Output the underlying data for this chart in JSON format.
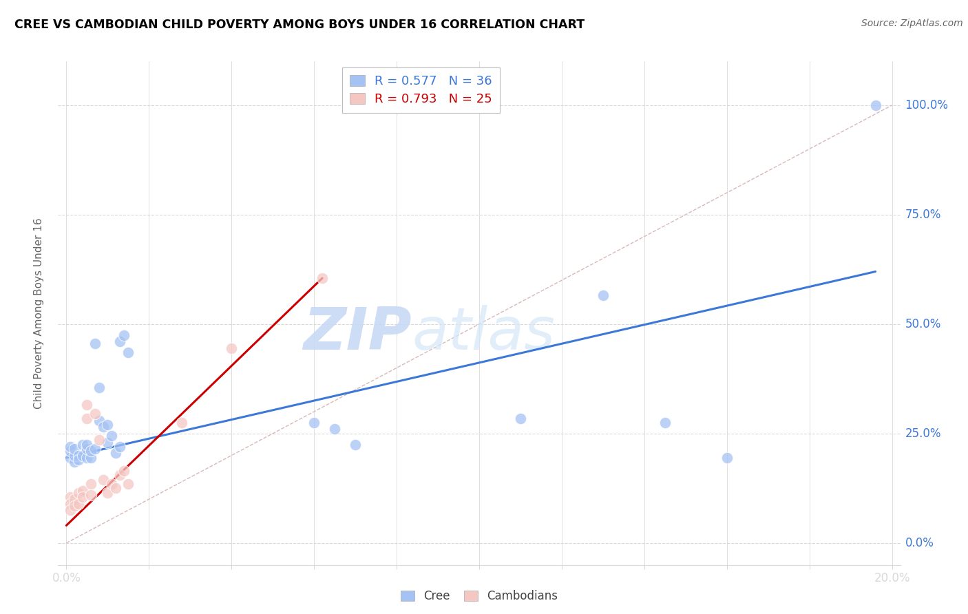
{
  "title": "CREE VS CAMBODIAN CHILD POVERTY AMONG BOYS UNDER 16 CORRELATION CHART",
  "source": "Source: ZipAtlas.com",
  "ylabel": "Child Poverty Among Boys Under 16",
  "watermark_zip": "ZIP",
  "watermark_atlas": "atlas",
  "legend_r1": "R = 0.577",
  "legend_n1": "N = 36",
  "legend_r2": "R = 0.793",
  "legend_n2": "N = 25",
  "cree_color": "#a4c2f4",
  "cambodian_color": "#f4c7c3",
  "cree_line_color": "#3c78d8",
  "cambodian_line_color": "#cc0000",
  "ref_line_color": "#d9b8b8",
  "background_color": "#ffffff",
  "grid_color": "#d9d9d9",
  "axis_color": "#3c78d8",
  "title_color": "#000000",
  "source_color": "#666666",
  "ylabel_color": "#666666",
  "cree_scatter_x": [
    0.001,
    0.001,
    0.001,
    0.002,
    0.002,
    0.002,
    0.003,
    0.003,
    0.004,
    0.004,
    0.005,
    0.005,
    0.005,
    0.006,
    0.006,
    0.007,
    0.007,
    0.008,
    0.008,
    0.009,
    0.01,
    0.01,
    0.011,
    0.012,
    0.013,
    0.013,
    0.014,
    0.015,
    0.06,
    0.065,
    0.07,
    0.11,
    0.13,
    0.145,
    0.16,
    0.196
  ],
  "cree_scatter_y": [
    0.195,
    0.21,
    0.22,
    0.185,
    0.2,
    0.215,
    0.2,
    0.19,
    0.2,
    0.225,
    0.195,
    0.215,
    0.225,
    0.195,
    0.21,
    0.215,
    0.455,
    0.355,
    0.28,
    0.265,
    0.27,
    0.23,
    0.245,
    0.205,
    0.22,
    0.46,
    0.475,
    0.435,
    0.275,
    0.26,
    0.225,
    0.285,
    0.565,
    0.275,
    0.195,
    1.0
  ],
  "cambodian_scatter_x": [
    0.001,
    0.001,
    0.001,
    0.002,
    0.002,
    0.003,
    0.003,
    0.004,
    0.004,
    0.005,
    0.005,
    0.006,
    0.006,
    0.007,
    0.008,
    0.009,
    0.01,
    0.011,
    0.012,
    0.013,
    0.014,
    0.015,
    0.028,
    0.04,
    0.062
  ],
  "cambodian_scatter_y": [
    0.105,
    0.09,
    0.075,
    0.1,
    0.085,
    0.115,
    0.09,
    0.12,
    0.105,
    0.285,
    0.315,
    0.135,
    0.11,
    0.295,
    0.235,
    0.145,
    0.115,
    0.135,
    0.125,
    0.155,
    0.165,
    0.135,
    0.275,
    0.445,
    0.605
  ],
  "cree_trend_x": [
    0.0,
    0.196
  ],
  "cree_trend_y": [
    0.195,
    0.62
  ],
  "cambodian_trend_x": [
    0.0,
    0.062
  ],
  "cambodian_trend_y": [
    0.04,
    0.605
  ],
  "ref_line_x": [
    0.0,
    0.2
  ],
  "ref_line_y": [
    0.0,
    1.0
  ],
  "xlim": [
    -0.002,
    0.202
  ],
  "ylim": [
    -0.05,
    1.1
  ],
  "xticks": [
    0.0,
    0.02,
    0.04,
    0.06,
    0.08,
    0.1,
    0.12,
    0.14,
    0.16,
    0.18,
    0.2
  ],
  "yticks": [
    0.0,
    0.25,
    0.5,
    0.75,
    1.0
  ],
  "ytick_labels_right": [
    "0.0%",
    "25.0%",
    "50.0%",
    "75.0%",
    "100.0%"
  ],
  "xtick_labels": [
    "0.0%",
    "",
    "",
    "",
    "",
    "",
    "",
    "",
    "",
    "",
    "20.0%"
  ]
}
